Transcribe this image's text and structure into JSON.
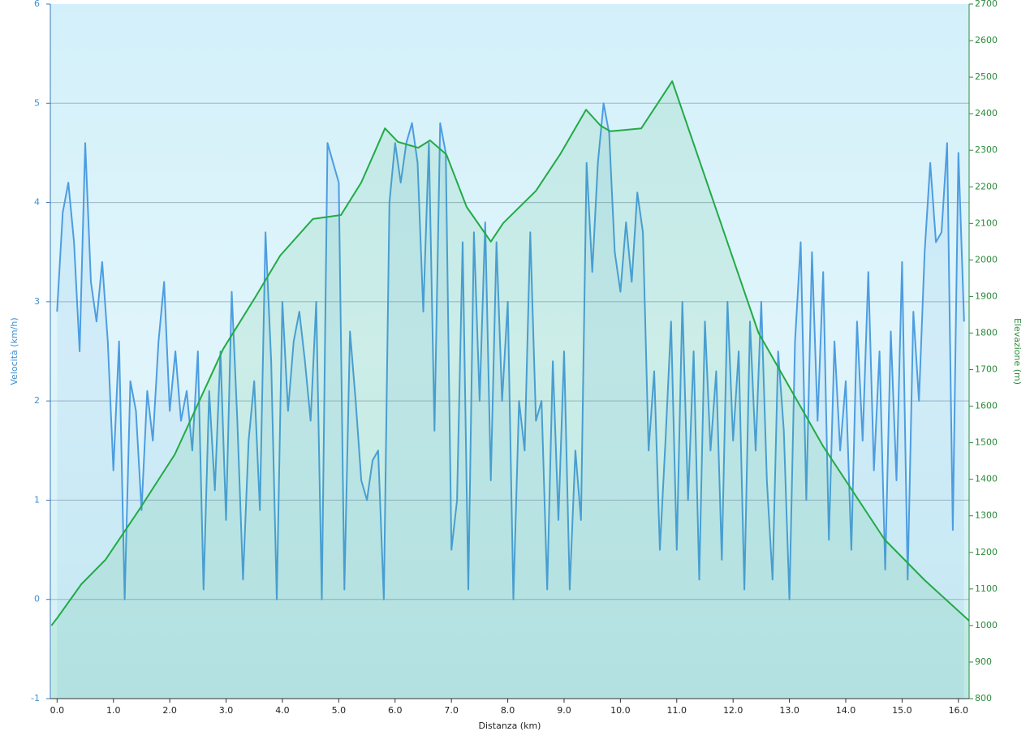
{
  "chart_data": {
    "type": "line",
    "xlabel": "Distanza  (km)",
    "ylabel": "Velocità (km/h)",
    "y2label": "Elevazione (m)",
    "xlim": [
      -0.12,
      16.19
    ],
    "ylim": [
      -1,
      6
    ],
    "y2lim": [
      800,
      2700
    ],
    "xticks": [
      {
        "value": 0,
        "label": "0.0"
      },
      {
        "value": 1,
        "label": "1.0"
      },
      {
        "value": 2,
        "label": "2.0"
      },
      {
        "value": 3,
        "label": "3.0"
      },
      {
        "value": 4,
        "label": "4.0"
      },
      {
        "value": 5,
        "label": "5.0"
      },
      {
        "value": 6,
        "label": "6.0"
      },
      {
        "value": 7,
        "label": "7.0"
      },
      {
        "value": 8,
        "label": "8.0"
      },
      {
        "value": 9,
        "label": "9.0"
      },
      {
        "value": 10,
        "label": "10.0"
      },
      {
        "value": 11,
        "label": "11.0"
      },
      {
        "value": 12,
        "label": "12.0"
      },
      {
        "value": 13,
        "label": "13.0"
      },
      {
        "value": 14,
        "label": "14.0"
      },
      {
        "value": 15,
        "label": "15.0"
      },
      {
        "value": 16,
        "label": "16.0"
      }
    ],
    "yticks": [
      -1,
      0,
      1,
      2,
      3,
      4,
      5,
      6
    ],
    "y2ticks": [
      800,
      900,
      1000,
      1100,
      1200,
      1300,
      1400,
      1500,
      1600,
      1700,
      1800,
      1900,
      2000,
      2100,
      2200,
      2300,
      2400,
      2500,
      2600,
      2700
    ],
    "grid": true,
    "series": [
      {
        "color": "#4d9de0",
        "x": [
          0.0,
          0.1,
          0.2,
          0.3,
          0.4,
          0.5,
          0.6,
          0.7,
          0.8,
          0.9,
          1.0,
          1.1,
          1.2,
          1.3,
          1.4,
          1.5,
          1.6,
          1.7,
          1.8,
          1.9,
          2.0,
          2.1,
          2.2,
          2.3,
          2.4,
          2.5,
          2.6,
          2.7,
          2.8,
          2.9,
          3.0,
          3.1,
          3.2,
          3.3,
          3.4,
          3.5,
          3.6,
          3.7,
          3.8,
          3.9,
          4.0,
          4.1,
          4.2,
          4.3,
          4.4,
          4.5,
          4.6,
          4.7,
          4.8,
          4.9,
          5.0,
          5.1,
          5.2,
          5.3,
          5.4,
          5.5,
          5.6,
          5.7,
          5.8,
          5.9,
          6.0,
          6.1,
          6.2,
          6.3,
          6.4,
          6.5,
          6.6,
          6.7,
          6.8,
          6.9,
          7.0,
          7.1,
          7.2,
          7.3,
          7.4,
          7.5,
          7.6,
          7.7,
          7.8,
          7.9,
          8.0,
          8.1,
          8.2,
          8.3,
          8.4,
          8.5,
          8.6,
          8.7,
          8.8,
          8.9,
          9.0,
          9.1,
          9.2,
          9.3,
          9.4,
          9.5,
          9.6,
          9.7,
          9.8,
          9.9,
          10.0,
          10.1,
          10.2,
          10.3,
          10.4,
          10.5,
          10.6,
          10.7,
          10.8,
          10.9,
          11.0,
          11.1,
          11.2,
          11.3,
          11.4,
          11.5,
          11.6,
          11.7,
          11.8,
          11.9,
          12.0,
          12.1,
          12.2,
          12.3,
          12.4,
          12.5,
          12.6,
          12.7,
          12.8,
          12.9,
          13.0,
          13.1,
          13.2,
          13.3,
          13.4,
          13.5,
          13.6,
          13.7,
          13.8,
          13.9,
          14.0,
          14.1,
          14.2,
          14.3,
          14.4,
          14.5,
          14.6,
          14.7,
          14.8,
          14.9,
          15.0,
          15.1,
          15.2,
          15.3,
          15.4,
          15.5,
          15.6,
          15.7,
          15.8,
          15.9,
          16.0,
          16.1
        ],
        "values": [
          2.9,
          3.9,
          4.2,
          3.6,
          2.5,
          4.6,
          3.2,
          2.8,
          3.4,
          2.6,
          1.3,
          2.6,
          0,
          2.2,
          1.9,
          0.9,
          2.1,
          1.6,
          2.6,
          3.2,
          1.9,
          2.5,
          1.8,
          2.1,
          1.5,
          2.5,
          0.1,
          2.1,
          1.1,
          2.5,
          0.8,
          3.1,
          1.8,
          0.2,
          1.6,
          2.2,
          0.9,
          3.7,
          2.4,
          0,
          3.0,
          1.9,
          2.6,
          2.9,
          2.4,
          1.8,
          3.0,
          0,
          4.6,
          4.4,
          4.2,
          0.1,
          2.7,
          2.0,
          1.2,
          1.0,
          1.4,
          1.5,
          0,
          4.0,
          4.6,
          4.2,
          4.6,
          4.8,
          4.4,
          2.9,
          4.6,
          1.7,
          4.8,
          4.5,
          0.5,
          1.0,
          3.6,
          0.1,
          3.7,
          2.0,
          3.8,
          1.2,
          3.6,
          2.0,
          3.0,
          0,
          2.0,
          1.5,
          3.7,
          1.8,
          2.0,
          0.1,
          2.4,
          0.8,
          2.5,
          0.1,
          1.5,
          0.8,
          4.4,
          3.3,
          4.4,
          5.0,
          4.7,
          3.5,
          3.1,
          3.8,
          3.2,
          4.1,
          3.7,
          1.5,
          2.3,
          0.5,
          1.6,
          2.8,
          0.5,
          3.0,
          1.0,
          2.5,
          0.2,
          2.8,
          1.5,
          2.3,
          0.4,
          3.0,
          1.6,
          2.5,
          0.1,
          2.8,
          1.5,
          3.0,
          1.2,
          0.2,
          2.5,
          1.7,
          0,
          2.6,
          3.6,
          1.0,
          3.5,
          1.8,
          3.3,
          0.6,
          2.6,
          1.5,
          2.2,
          0.5,
          2.8,
          1.6,
          3.3,
          1.3,
          2.5,
          0.3,
          2.7,
          1.2,
          3.4,
          0.2,
          2.9,
          2.0,
          3.5,
          4.4,
          3.6,
          3.7,
          4.6,
          0.7,
          4.5,
          2.8
        ]
      },
      {
        "color": "#22aa44",
        "axis": "y2",
        "x": [
          -0.1,
          0.0,
          0.43,
          0.86,
          1.44,
          2.09,
          2.95,
          3.53,
          3.96,
          4.54,
          5.04,
          5.4,
          5.62,
          5.82,
          6.05,
          6.41,
          6.62,
          6.91,
          7.27,
          7.7,
          7.92,
          8.5,
          8.93,
          9.39,
          9.65,
          9.82,
          10.37,
          10.92,
          11.66,
          12.45,
          13.6,
          14.69,
          15.4,
          16.19
        ],
        "values": [
          1000,
          1020,
          1113,
          1180,
          1313,
          1468,
          1757,
          1901,
          2012,
          2112,
          2123,
          2212,
          2289,
          2360,
          2323,
          2307,
          2327,
          2289,
          2145,
          2050,
          2101,
          2189,
          2289,
          2411,
          2367,
          2352,
          2360,
          2489,
          2156,
          1801,
          1490,
          1235,
          1124,
          1013
        ]
      }
    ]
  }
}
